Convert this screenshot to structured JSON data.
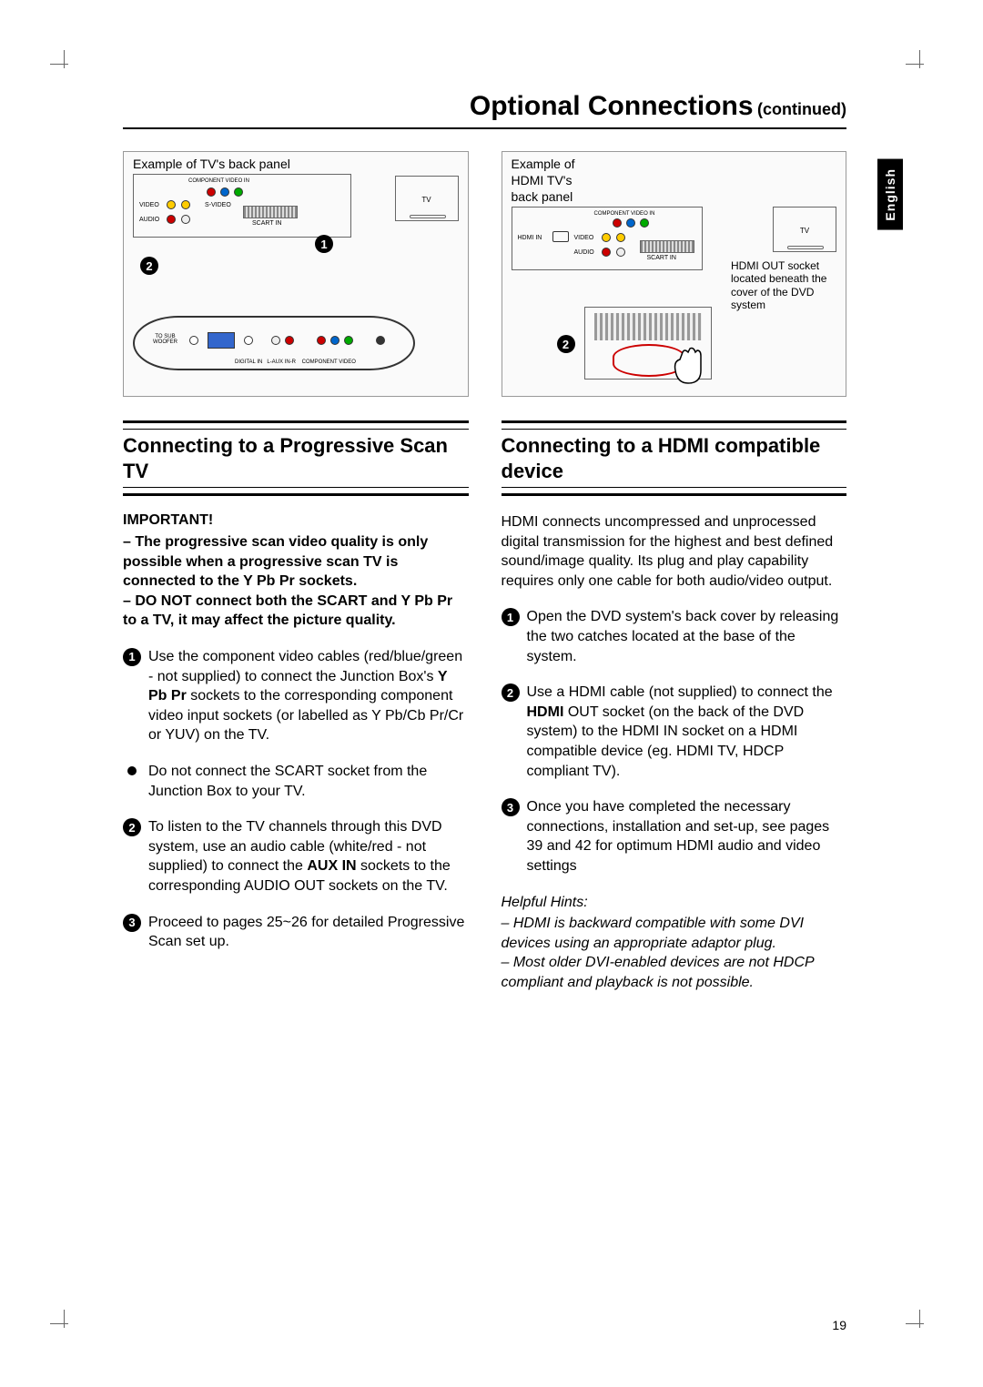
{
  "page": {
    "title_main": "Optional Connections",
    "title_sub": "(continued)",
    "language_tab": "English",
    "page_number": "19"
  },
  "left": {
    "diagram_caption": "Example of TV's back panel",
    "heading": "Connecting to a Progressive Scan TV",
    "important_label": "IMPORTANT!",
    "important_body": "– The progressive scan video quality is only possible when a progressive scan TV is connected to the Y Pb Pr sockets.\n– DO NOT connect both the SCART and Y Pb Pr to a TV, it may affect the picture quality.",
    "steps": [
      {
        "n": "1",
        "text_pre": "Use the component video cables (red/blue/green - not supplied) to connect the Junction Box's ",
        "bold": "Y Pb Pr",
        "text_post": " sockets to the corresponding component video input sockets (or labelled as Y Pb/Cb Pr/Cr or YUV) on the TV."
      },
      {
        "n": "dot",
        "text_pre": "Do not connect the SCART socket from the Junction Box to your TV.",
        "bold": "",
        "text_post": ""
      },
      {
        "n": "2",
        "text_pre": "To listen to the TV channels through this DVD system, use an audio cable (white/red - not supplied) to connect the ",
        "bold": "AUX IN",
        "text_post": " sockets to the corresponding AUDIO OUT sockets on the TV."
      },
      {
        "n": "3",
        "text_pre": "Proceed to pages 25~26 for detailed Progressive Scan set up.",
        "bold": "",
        "text_post": ""
      }
    ]
  },
  "right": {
    "diagram_caption": "Example of HDMI TV's back panel",
    "diagram_note": "HDMI OUT socket located beneath the cover of the DVD system",
    "heading": "Connecting to a HDMI compatible device",
    "intro": "HDMI connects uncompressed and unprocessed digital transmission for the highest and best defined sound/image quality. Its plug and play capability requires only one cable for both audio/video output.",
    "steps": [
      {
        "n": "1",
        "text_pre": "Open the DVD system's back cover by releasing the two catches located at the base of the system.",
        "bold": "",
        "text_post": ""
      },
      {
        "n": "2",
        "text_pre": "Use a HDMI cable (not supplied) to connect the ",
        "bold": "HDMI",
        "text_post": " OUT socket (on the back of the DVD system) to the HDMI IN socket on a HDMI compatible device (eg. HDMI TV, HDCP compliant TV)."
      },
      {
        "n": "3",
        "text_pre": "Once you have completed the necessary connections, installation and set-up, see pages 39 and 42 for optimum HDMI audio and video settings",
        "bold": "",
        "text_post": ""
      }
    ],
    "hints_title": "Helpful Hints:",
    "hints": "– HDMI is backward compatible with some DVI devices using an appropriate adaptor plug.\n– Most older DVI-enabled devices are not HDCP compliant and playback is not possible."
  }
}
